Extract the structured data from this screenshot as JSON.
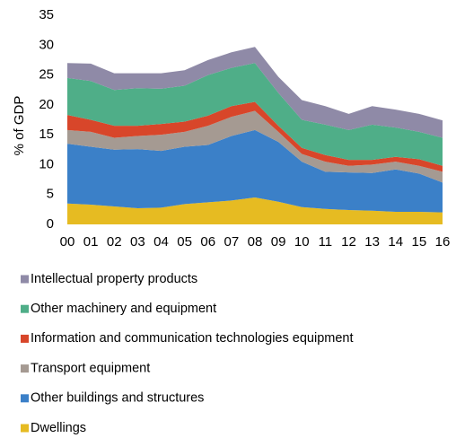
{
  "chart_data": {
    "type": "stacked_area",
    "y_label": "% of GDP",
    "categories": [
      "00",
      "01",
      "02",
      "03",
      "04",
      "05",
      "06",
      "07",
      "08",
      "09",
      "10",
      "11",
      "12",
      "13",
      "14",
      "15",
      "16"
    ],
    "ylim": [
      0,
      35
    ],
    "yticks": [
      0,
      5,
      10,
      15,
      20,
      25,
      30,
      35
    ],
    "grid": false,
    "legend": "bottom",
    "series": [
      {
        "name": "Dwellings",
        "color": "#e6bb22",
        "values": [
          3.5,
          3.3,
          3.0,
          2.7,
          2.8,
          3.4,
          3.7,
          4.0,
          4.5,
          3.8,
          2.9,
          2.6,
          2.4,
          2.3,
          2.1,
          2.1,
          2.0
        ]
      },
      {
        "name": "Other buildings and structures",
        "color": "#3b80c8",
        "values": [
          10.0,
          9.7,
          9.5,
          9.9,
          9.5,
          9.6,
          9.6,
          10.8,
          11.3,
          10.0,
          7.6,
          6.2,
          6.3,
          6.3,
          7.1,
          6.4,
          5.0
        ]
      },
      {
        "name": "Transport equipment",
        "color": "#a59a92",
        "values": [
          2.3,
          2.5,
          2.0,
          2.2,
          2.7,
          2.5,
          3.2,
          3.2,
          3.2,
          1.7,
          1.3,
          1.7,
          1.1,
          1.4,
          1.3,
          1.3,
          1.8
        ]
      },
      {
        "name": "Information and communication technologies equipment",
        "color": "#d8462a",
        "values": [
          2.5,
          2.0,
          2.0,
          1.7,
          1.8,
          1.7,
          1.7,
          1.8,
          1.5,
          1.0,
          1.0,
          1.1,
          1.0,
          0.8,
          0.8,
          1.1,
          1.0
        ]
      },
      {
        "name": "Other machinery and equipment",
        "color": "#4fae88",
        "values": [
          6.2,
          6.5,
          6.0,
          6.3,
          5.9,
          6.0,
          6.8,
          6.4,
          6.5,
          5.5,
          4.7,
          5.1,
          5.0,
          5.9,
          4.9,
          4.6,
          4.7
        ]
      },
      {
        "name": "Intellectual property products",
        "color": "#8f8aa7",
        "values": [
          2.5,
          2.9,
          2.8,
          2.5,
          2.6,
          2.6,
          2.5,
          2.6,
          2.7,
          2.7,
          3.3,
          3.1,
          2.7,
          3.1,
          3.0,
          3.0,
          2.9
        ]
      }
    ]
  }
}
